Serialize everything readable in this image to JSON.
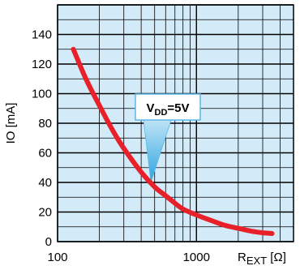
{
  "chart_data": {
    "type": "line",
    "title": "",
    "xlabel": {
      "main": "R",
      "sub": "EXT",
      "unit": " [Ω]"
    },
    "ylabel": "IO [mA]",
    "xscale": "log",
    "xlim": [
      100,
      5000
    ],
    "ylim": [
      0,
      160
    ],
    "xticks": [
      100,
      1000
    ],
    "xtick_labels": [
      "100",
      "1000"
    ],
    "yticks": [
      0,
      20,
      40,
      60,
      80,
      100,
      120,
      140
    ],
    "ytick_labels": [
      "0",
      "20",
      "40",
      "60",
      "80",
      "100",
      "120",
      "140"
    ],
    "grid": true,
    "background_color": "#d3ebf9",
    "series": [
      {
        "color": "#e8202a",
        "x": [
          130,
          160,
          200,
          250,
          300,
          400,
          500,
          600,
          700,
          800,
          1000,
          1300,
          1600,
          2000,
          2500,
          3000,
          3500
        ],
        "values": [
          130,
          110,
          92,
          75,
          63,
          47,
          37,
          31,
          26,
          22,
          18,
          14,
          11,
          9,
          7,
          6,
          5.5
        ]
      }
    ],
    "annotation": {
      "text_main": "V",
      "text_sub": "DD",
      "text_tail": "=5V",
      "point_x": 470,
      "point_y": 40,
      "fill": "#ffffff",
      "pointer_color": "#5ab8e8"
    }
  }
}
